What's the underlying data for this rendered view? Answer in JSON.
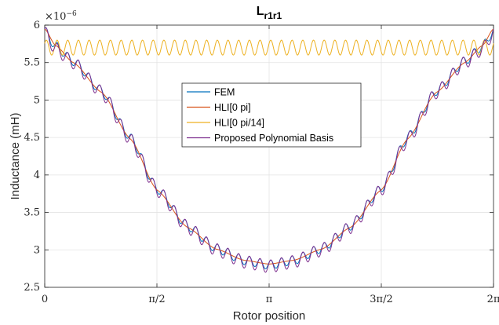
{
  "chart_data": {
    "type": "line",
    "title": "L",
    "title_subscript": "r1r1",
    "xlabel": "Rotor position",
    "ylabel": "Inductance (mH)",
    "exponent_label": "×10",
    "exponent_power": "−6",
    "xlim": [
      0,
      6.283185
    ],
    "ylim": [
      2.5,
      6
    ],
    "x_ticks": [
      {
        "value": 0,
        "label": "0"
      },
      {
        "value": 1.570796,
        "label": "π/2"
      },
      {
        "value": 3.141593,
        "label": "π"
      },
      {
        "value": 4.712389,
        "label": "3π/2"
      },
      {
        "value": 6.283185,
        "label": "2π"
      }
    ],
    "y_ticks": [
      {
        "value": 2.5,
        "label": "2.5"
      },
      {
        "value": 3,
        "label": "3"
      },
      {
        "value": 3.5,
        "label": "3.5"
      },
      {
        "value": 4,
        "label": "4"
      },
      {
        "value": 4.5,
        "label": "4.5"
      },
      {
        "value": 5,
        "label": "5"
      },
      {
        "value": 5.5,
        "label": "5.5"
      },
      {
        "value": 6,
        "label": "6"
      }
    ],
    "grid": true,
    "legend_position": "center",
    "series": [
      {
        "name": "FEM",
        "color": "#0072BD",
        "base_key_points": [
          [
            0,
            5.92
          ],
          [
            0.15,
            5.72
          ],
          [
            0.4,
            5.52
          ],
          [
            0.8,
            5.12
          ],
          [
            1.2,
            4.5
          ],
          [
            1.571,
            3.82
          ],
          [
            2.0,
            3.32
          ],
          [
            2.4,
            3.02
          ],
          [
            2.8,
            2.86
          ],
          [
            3.1416,
            2.8
          ],
          [
            3.48,
            2.86
          ],
          [
            3.88,
            3.02
          ],
          [
            4.28,
            3.32
          ],
          [
            4.712,
            3.82
          ],
          [
            5.08,
            4.5
          ],
          [
            5.48,
            5.12
          ],
          [
            5.88,
            5.52
          ],
          [
            6.13,
            5.72
          ],
          [
            6.2832,
            5.92
          ]
        ],
        "ripple_periods": 42,
        "ripple_amplitude": 0.06
      },
      {
        "name": "HLI[0 pi]",
        "color": "#D95319",
        "base_key_points": [
          [
            0,
            5.95
          ],
          [
            0.15,
            5.73
          ],
          [
            0.4,
            5.5
          ],
          [
            0.8,
            5.1
          ],
          [
            1.2,
            4.48
          ],
          [
            1.571,
            3.8
          ],
          [
            2.0,
            3.3
          ],
          [
            2.4,
            3.01
          ],
          [
            2.8,
            2.86
          ],
          [
            3.1416,
            2.81
          ],
          [
            3.48,
            2.86
          ],
          [
            3.88,
            3.01
          ],
          [
            4.28,
            3.3
          ],
          [
            4.712,
            3.8
          ],
          [
            5.08,
            4.48
          ],
          [
            5.48,
            5.1
          ],
          [
            5.88,
            5.5
          ],
          [
            6.13,
            5.73
          ],
          [
            6.2832,
            5.95
          ]
        ],
        "ripple_periods": 42,
        "ripple_amplitude": 0.0
      },
      {
        "name": "HLI[0 pi/14]",
        "color": "#EDB120",
        "base_key_points": [
          [
            0,
            5.7
          ],
          [
            6.2832,
            5.7
          ]
        ],
        "ripple_periods": 42,
        "ripple_amplitude": 0.1
      },
      {
        "name": "Proposed Polynomial Basis",
        "color": "#7E2F8E",
        "base_key_points": [
          [
            0,
            5.9
          ],
          [
            0.15,
            5.68
          ],
          [
            0.4,
            5.5
          ],
          [
            0.8,
            5.1
          ],
          [
            1.2,
            4.47
          ],
          [
            1.571,
            3.8
          ],
          [
            2.0,
            3.3
          ],
          [
            2.4,
            3.0
          ],
          [
            2.8,
            2.84
          ],
          [
            3.1416,
            2.78
          ],
          [
            3.48,
            2.84
          ],
          [
            3.88,
            3.0
          ],
          [
            4.28,
            3.3
          ],
          [
            4.712,
            3.8
          ],
          [
            5.08,
            4.47
          ],
          [
            5.48,
            5.1
          ],
          [
            5.88,
            5.5
          ],
          [
            6.13,
            5.68
          ],
          [
            6.2832,
            5.9
          ]
        ],
        "ripple_periods": 42,
        "ripple_amplitude": 0.085
      }
    ]
  }
}
